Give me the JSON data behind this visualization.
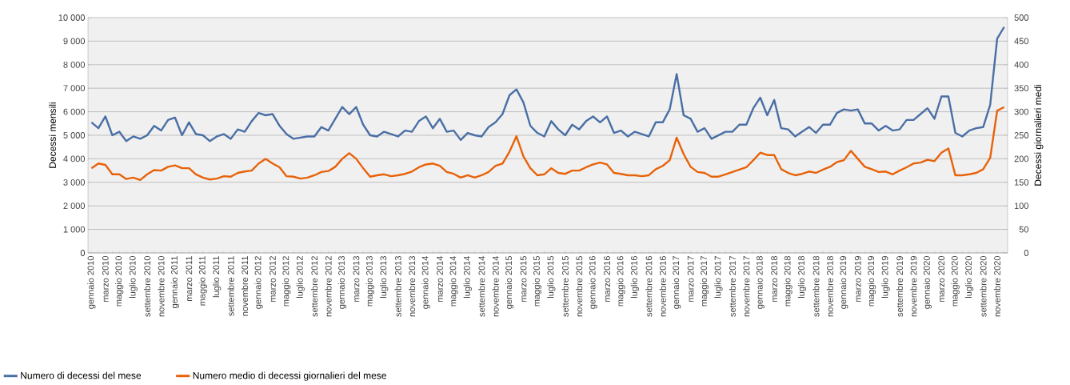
{
  "chart_data": {
    "type": "line",
    "ylabel": "Decessi mensili",
    "y2label": "Decessi giornalieri medi",
    "categories": [
      "gennaio 2010",
      null,
      "marzo 2010",
      null,
      "maggio 2010",
      null,
      "luglio 2010",
      null,
      "settembre 2010",
      null,
      "novembre 2010",
      null,
      "gennaio 2011",
      null,
      "marzo 2011",
      null,
      "maggio 2011",
      null,
      "luglio 2011",
      null,
      "settembre 2011",
      null,
      "novembre 2011",
      null,
      "gennaio 2012",
      null,
      "marzo 2012",
      null,
      "maggio 2012",
      null,
      "luglio 2012",
      null,
      "settembre 2012",
      null,
      "novembre 2012",
      null,
      "gennaio 2013",
      null,
      "marzo 2013",
      null,
      "maggio 2013",
      null,
      "luglio 2013",
      null,
      "settembre 2013",
      null,
      "novembre 2013",
      null,
      "gennaio 2014",
      null,
      "marzo 2014",
      null,
      "maggio 2014",
      null,
      "luglio 2014",
      null,
      "settembre 2014",
      null,
      "novembre 2014",
      null,
      "gennaio 2015",
      null,
      "marzo 2015",
      null,
      "maggio 2015",
      null,
      "luglio 2015",
      null,
      "settembre 2015",
      null,
      "novembre 2015",
      null,
      "gennaio 2016",
      null,
      "marzo 2016",
      null,
      "maggio 2016",
      null,
      "luglio 2016",
      null,
      "settembre 2016",
      null,
      "novembre 2016",
      null,
      "gennaio 2017",
      null,
      "marzo 2017",
      null,
      "maggio 2017",
      null,
      "luglio 2017",
      null,
      "settembre 2017",
      null,
      "novembre 2017",
      null,
      "gennaio 2018",
      null,
      "marzo 2018",
      null,
      "maggio 2018",
      null,
      "luglio 2018",
      null,
      "settembre 2018",
      null,
      "novembre 2018",
      null,
      "gennaio 2019",
      null,
      "marzo 2019",
      null,
      "maggio 2019",
      null,
      "luglio 2019",
      null,
      "settembre 2019",
      null,
      "novembre 2019",
      null,
      "gennaio 2020",
      null,
      "marzo 2020",
      null,
      "maggio 2020",
      null,
      "luglio 2020",
      null,
      "settembre 2020",
      null,
      "novembre 2020",
      null
    ],
    "series": [
      {
        "name": "Numero di decessi del mese",
        "color": "#4a6fa5",
        "values": [
          5550,
          5300,
          5800,
          5000,
          5150,
          4750,
          4950,
          4850,
          5000,
          5400,
          5200,
          5650,
          5750,
          5000,
          5550,
          5050,
          5000,
          4750,
          4950,
          5050,
          4850,
          5250,
          5150,
          5600,
          5950,
          5850,
          5900,
          5400,
          5050,
          4850,
          4900,
          4950,
          4950,
          5350,
          5200,
          5700,
          6200,
          5900,
          6200,
          5450,
          5000,
          4950,
          5150,
          5050,
          4950,
          5200,
          5150,
          5600,
          5800,
          5300,
          5700,
          5150,
          5200,
          4800,
          5100,
          5000,
          4950,
          5350,
          5550,
          5900,
          6700,
          6950,
          6400,
          5400,
          5100,
          4950,
          5600,
          5250,
          5000,
          5450,
          5250,
          5600,
          5800,
          5550,
          5800,
          5100,
          5200,
          4950,
          5150,
          5050,
          4950,
          5550,
          5550,
          6100,
          7600,
          5850,
          5700,
          5150,
          5300,
          4850,
          5000,
          5150,
          5150,
          5450,
          5450,
          6150,
          6600,
          5850,
          6500,
          5300,
          5250,
          4950,
          5150,
          5350,
          5100,
          5450,
          5450,
          5950,
          6100,
          6050,
          6100,
          5500,
          5500,
          5200,
          5400,
          5200,
          5250,
          5650,
          5650,
          5900,
          6150,
          5700,
          6650,
          6650,
          5100,
          4950,
          5200,
          5300,
          5350,
          6300,
          9100,
          9600
        ]
      },
      {
        "name": "Numero medio di decessi giornalieri del mese",
        "color": "#e8620a",
        "axis": "y2",
        "values": [
          180,
          190,
          187,
          167,
          167,
          157,
          160,
          155,
          167,
          176,
          175,
          183,
          186,
          180,
          180,
          167,
          160,
          156,
          158,
          163,
          162,
          170,
          173,
          175,
          190,
          200,
          190,
          182,
          163,
          162,
          158,
          160,
          165,
          172,
          174,
          183,
          200,
          212,
          200,
          180,
          162,
          165,
          167,
          163,
          165,
          168,
          173,
          182,
          188,
          190,
          185,
          172,
          168,
          160,
          165,
          160,
          165,
          172,
          185,
          190,
          215,
          248,
          205,
          180,
          165,
          167,
          180,
          170,
          168,
          175,
          175,
          182,
          188,
          192,
          188,
          170,
          168,
          165,
          165,
          163,
          165,
          178,
          185,
          197,
          245,
          210,
          183,
          172,
          170,
          162,
          162,
          167,
          172,
          177,
          182,
          197,
          213,
          208,
          208,
          178,
          170,
          165,
          168,
          173,
          170,
          177,
          183,
          193,
          197,
          217,
          200,
          183,
          178,
          172,
          173,
          167,
          175,
          182,
          190,
          192,
          198,
          195,
          213,
          222,
          165,
          165,
          167,
          170,
          178,
          202,
          302,
          310
        ]
      }
    ],
    "ylim": [
      0,
      10000
    ],
    "yticks": [
      0,
      {
        "value": 1000,
        "label": "1 000"
      },
      {
        "value": 2000,
        "label": "2 000"
      },
      {
        "value": 3000,
        "label": "3 000"
      },
      {
        "value": 4000,
        "label": "4 000"
      },
      {
        "value": 5000,
        "label": "5 000"
      },
      {
        "value": 6000,
        "label": "6 000"
      },
      {
        "value": 7000,
        "label": "7 000"
      },
      {
        "value": 8000,
        "label": "8 000"
      },
      {
        "value": 9000,
        "label": "9 000"
      },
      {
        "value": 10000,
        "label": "10 000"
      }
    ],
    "y2lim": [
      0,
      500
    ],
    "y2ticks": [
      0,
      50,
      100,
      150,
      200,
      250,
      300,
      350,
      400,
      450,
      500
    ],
    "grid": "y",
    "legend": "bottom left",
    "marker": "none",
    "line_style": "solid"
  }
}
